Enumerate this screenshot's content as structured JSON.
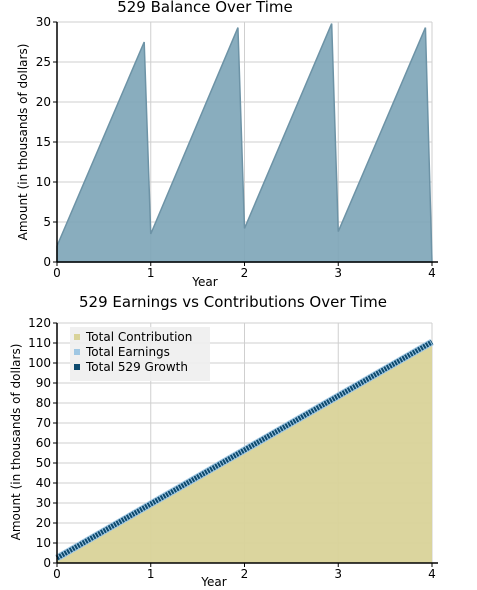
{
  "chart_data": [
    {
      "type": "area",
      "title": "529 Balance Over Time",
      "xlabel": "Year",
      "ylabel": "Amount (in thousands of dollars)",
      "xlim": [
        0,
        4
      ],
      "ylim": [
        0,
        30
      ],
      "x_ticks": [
        "0",
        "1",
        "2",
        "3",
        "4"
      ],
      "y_ticks": [
        "0",
        "5",
        "10",
        "15",
        "20",
        "25",
        "30"
      ],
      "grid": true,
      "colors": {
        "fill": "#7fa6b8",
        "stroke": "#6d93a6"
      },
      "series": [
        {
          "x": [
            0,
            0.93,
            0.93,
            1.0,
            1.93,
            1.93,
            2.0,
            2.93,
            2.93,
            3.0,
            3.93,
            3.93,
            4.0
          ],
          "y": [
            2.0,
            27.5,
            27.5,
            3.5,
            29.3,
            29.3,
            4.2,
            29.8,
            29.8,
            3.8,
            29.3,
            29.3,
            0
          ]
        }
      ]
    },
    {
      "type": "area",
      "title": "529 Earnings vs Contributions Over Time",
      "xlabel": "Year",
      "ylabel": "Amount (in thousands of dollars)",
      "xlim": [
        0,
        4
      ],
      "ylim": [
        0,
        120
      ],
      "x_ticks": [
        "0",
        "1",
        "2",
        "3",
        "4"
      ],
      "y_ticks": [
        "0",
        "10",
        "20",
        "30",
        "40",
        "50",
        "60",
        "70",
        "80",
        "90",
        "100",
        "110",
        "120"
      ],
      "grid": true,
      "legend_position": "top-left",
      "series": [
        {
          "name": "Total Contribution",
          "color": "#d9d399",
          "x": [
            0,
            4
          ],
          "y": [
            2,
            110
          ]
        },
        {
          "name": "Total Earnings",
          "color": "#9fc7e3",
          "x": [
            0,
            4
          ],
          "y": [
            2.5,
            110.5
          ]
        },
        {
          "name": "Total 529 Growth",
          "color": "#0d4a6e",
          "x": [
            0,
            4
          ],
          "y": [
            2.5,
            110.5
          ]
        }
      ]
    }
  ]
}
